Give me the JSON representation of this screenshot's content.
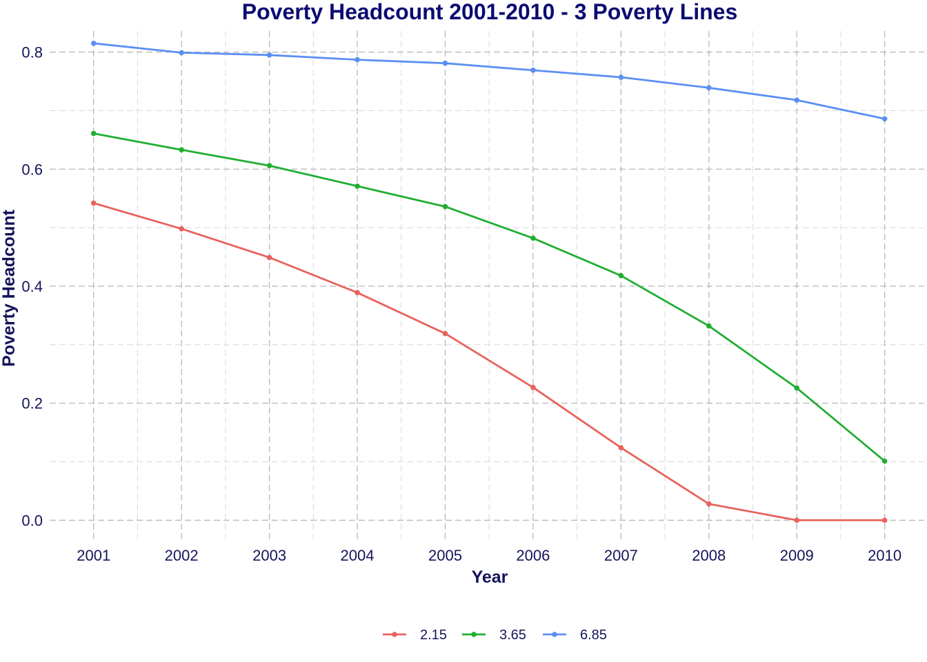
{
  "chart_data": {
    "type": "line",
    "title": "Poverty Headcount 2001-2010 - 3 Poverty Lines",
    "xlabel": "Year",
    "ylabel": "Poverty Headcount",
    "x": [
      2001,
      2002,
      2003,
      2004,
      2005,
      2006,
      2007,
      2008,
      2009,
      2010
    ],
    "x_tick_labels": [
      "2001",
      "2002",
      "2003",
      "2004",
      "2005",
      "2006",
      "2007",
      "2008",
      "2009",
      "2010"
    ],
    "y_ticks": [
      0.0,
      0.2,
      0.4,
      0.6,
      0.8
    ],
    "y_tick_labels": [
      "0.0",
      "0.2",
      "0.4",
      "0.6",
      "0.8"
    ],
    "xlim": [
      2000.5,
      2010.45
    ],
    "ylim": [
      -0.036,
      0.836
    ],
    "grid": true,
    "legend_position": "bottom",
    "series": [
      {
        "name": "2.15",
        "color": "#E8625C",
        "values": [
          0.542,
          0.498,
          0.449,
          0.389,
          0.319,
          0.227,
          0.124,
          0.028,
          0.0,
          0.0
        ]
      },
      {
        "name": "3.65",
        "color": "#1FAE32",
        "values": [
          0.661,
          0.633,
          0.606,
          0.571,
          0.536,
          0.482,
          0.418,
          0.332,
          0.226,
          0.101
        ]
      },
      {
        "name": "6.85",
        "color": "#5B8FF2",
        "values": [
          0.815,
          0.799,
          0.795,
          0.787,
          0.781,
          0.769,
          0.757,
          0.739,
          0.718,
          0.686
        ]
      }
    ]
  }
}
